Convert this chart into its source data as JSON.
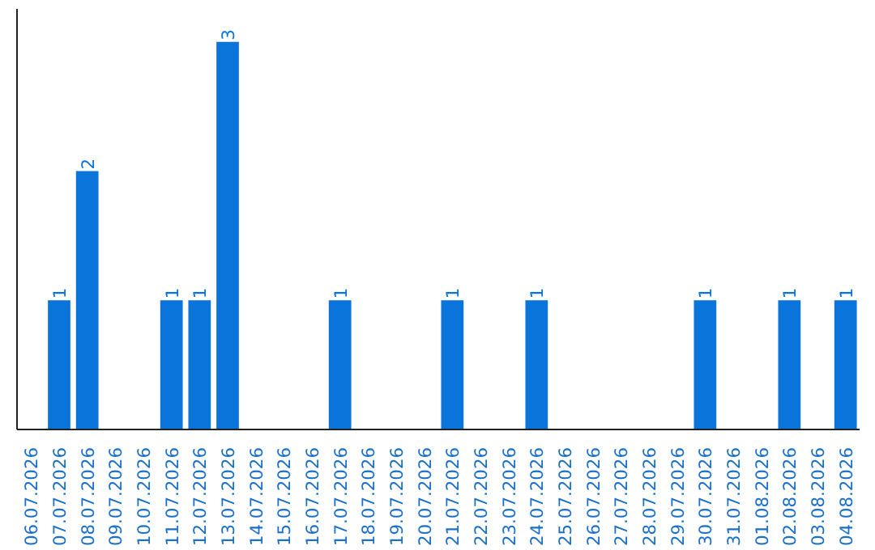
{
  "chart_data": {
    "type": "bar",
    "color": "#0a74da",
    "categories": [
      "06.07.2026",
      "07.07.2026",
      "08.07.2026",
      "09.07.2026",
      "10.07.2026",
      "11.07.2026",
      "12.07.2026",
      "13.07.2026",
      "14.07.2026",
      "15.07.2026",
      "16.07.2026",
      "17.07.2026",
      "18.07.2026",
      "19.07.2026",
      "20.07.2026",
      "21.07.2026",
      "22.07.2026",
      "23.07.2026",
      "24.07.2026",
      "25.07.2026",
      "26.07.2026",
      "27.07.2026",
      "28.07.2026",
      "29.07.2026",
      "30.07.2026",
      "31.07.2026",
      "01.08.2026",
      "02.08.2026",
      "03.08.2026",
      "04.08.2026"
    ],
    "values": [
      0,
      1,
      2,
      0,
      0,
      1,
      1,
      3,
      0,
      0,
      0,
      1,
      0,
      0,
      0,
      1,
      0,
      0,
      1,
      0,
      0,
      0,
      0,
      0,
      1,
      0,
      0,
      1,
      0,
      1
    ],
    "value_labels": [
      null,
      "1",
      "2",
      null,
      null,
      "1",
      "1",
      "3",
      null,
      null,
      null,
      "1",
      null,
      null,
      null,
      "1",
      null,
      null,
      "1",
      null,
      null,
      null,
      null,
      null,
      "1",
      null,
      null,
      "1",
      null,
      "1"
    ],
    "grid": false
  }
}
